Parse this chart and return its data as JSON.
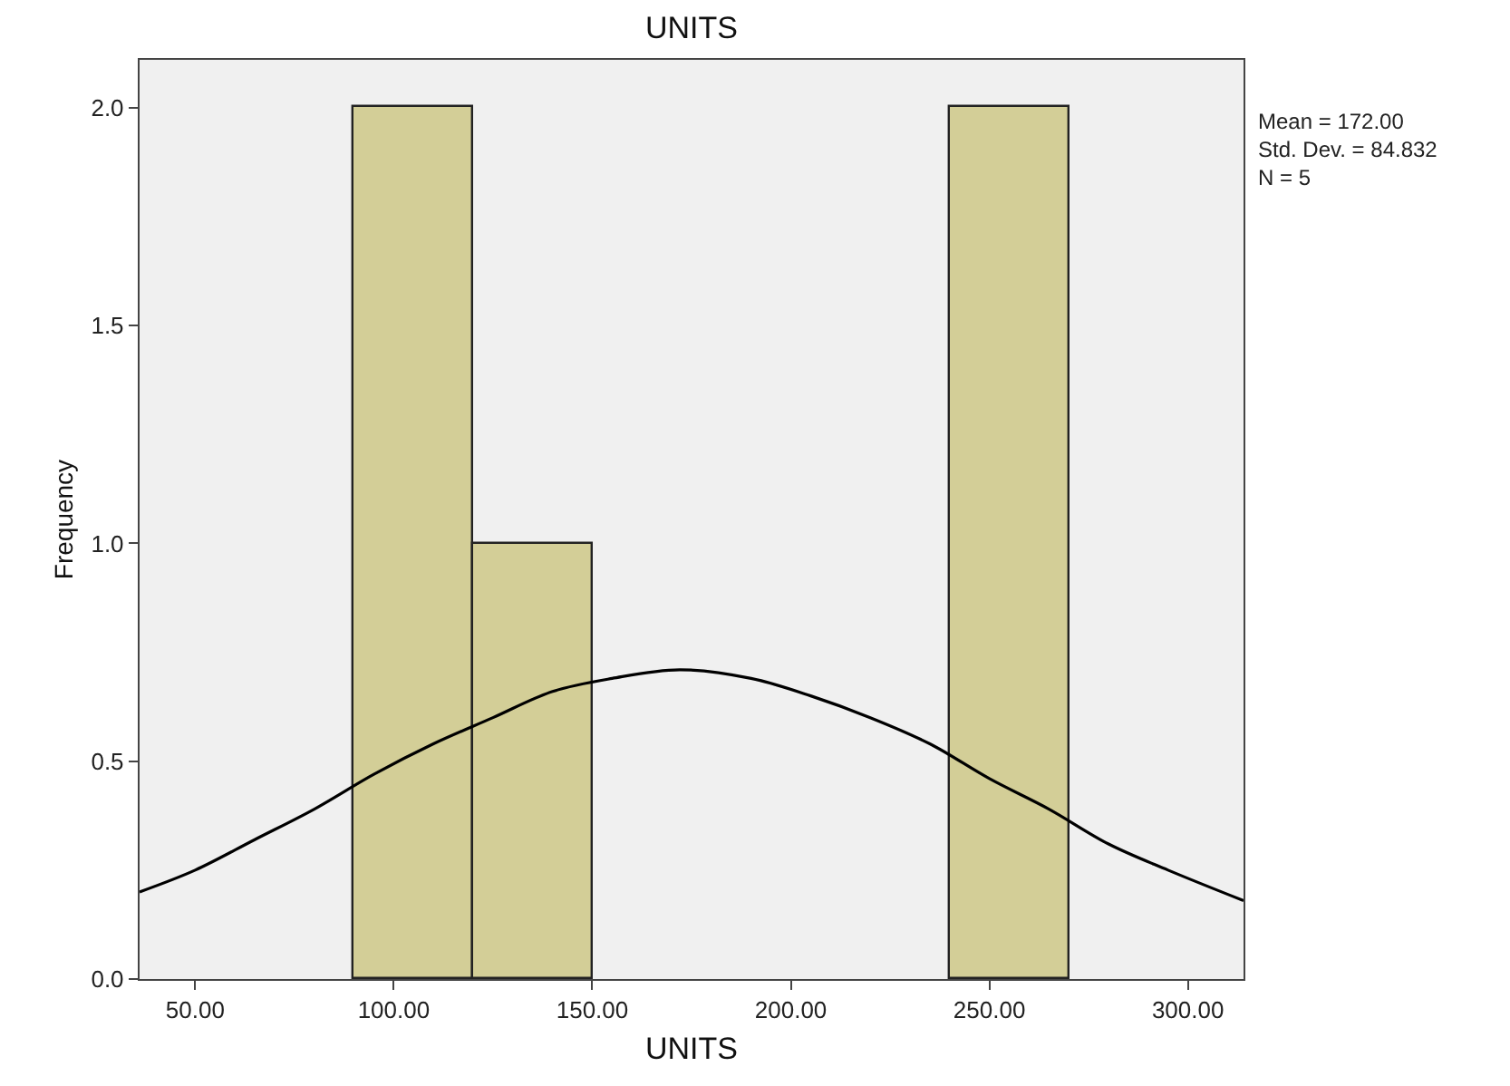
{
  "chart_data": {
    "type": "histogram",
    "title": "UNITS",
    "xlabel": "UNITS",
    "ylabel": "Frequency",
    "annotations": [
      "Mean = 172.00\nStd. Dev. = 84.832\nN = 5"
    ],
    "series": [
      {
        "bins": [
          90,
          120,
          150,
          180,
          210,
          240,
          270
        ],
        "values": [
          2,
          1,
          0,
          0,
          0,
          2
        ],
        "color": "#d3ce97"
      },
      {
        "type": "line",
        "color": "#000000",
        "marker": "none",
        "x": [
          36,
          50,
          65,
          80,
          95,
          110,
          125,
          140,
          155,
          172,
          190,
          205,
          220,
          235,
          250,
          265,
          280,
          295,
          314
        ],
        "values": [
          0.2,
          0.25,
          0.32,
          0.39,
          0.47,
          0.54,
          0.6,
          0.66,
          0.69,
          0.71,
          0.69,
          0.65,
          0.6,
          0.54,
          0.46,
          0.39,
          0.31,
          0.25,
          0.18
        ]
      }
    ],
    "xlim": [
      36,
      314
    ],
    "xticks": [
      {
        "value": 50,
        "label": "50.00"
      },
      {
        "value": 100,
        "label": "100.00"
      },
      {
        "value": 150,
        "label": "150.00"
      },
      {
        "value": 200,
        "label": "200.00"
      },
      {
        "value": 250,
        "label": "250.00"
      },
      {
        "value": 300,
        "label": "300.00"
      }
    ],
    "ylim": [
      0,
      2.11
    ],
    "yticks": [
      {
        "value": 0,
        "label": "0.0"
      },
      {
        "value": 0.5,
        "label": "0.5"
      },
      {
        "value": 1,
        "label": "1.0"
      },
      {
        "value": 1.5,
        "label": "1.5"
      },
      {
        "value": 2,
        "label": "2.0"
      }
    ],
    "grid": false
  }
}
